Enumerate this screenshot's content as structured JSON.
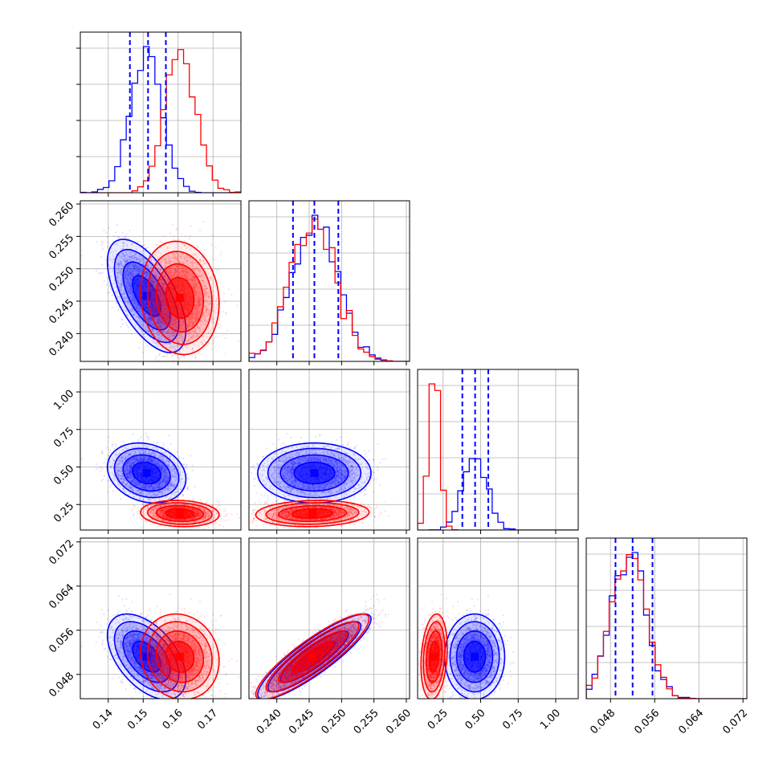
{
  "chart_data": {
    "type": "scatter",
    "subtype": "corner-plot",
    "grid": true,
    "legend": "none",
    "colors": {
      "series_a": "#0000ff",
      "series_b": "#ff0000"
    },
    "parameters": [
      {
        "range": [
          0.132,
          0.178
        ],
        "ticks": [
          "0.14",
          "0.15",
          "0.16",
          "0.17"
        ],
        "tick_values": [
          0.14,
          0.15,
          0.16,
          0.17
        ]
      },
      {
        "range": [
          0.2357,
          0.2605
        ],
        "ticks": [
          "0.240",
          "0.245",
          "0.250",
          "0.255",
          "0.260"
        ],
        "tick_values": [
          0.24,
          0.245,
          0.25,
          0.255,
          0.26
        ]
      },
      {
        "range": [
          0.08,
          1.15
        ],
        "ticks": [
          "0.25",
          "0.50",
          "0.75",
          "1.00"
        ],
        "tick_values": [
          0.25,
          0.5,
          0.75,
          1.0
        ]
      },
      {
        "range": [
          0.0436,
          0.0727
        ],
        "ticks": [
          "0.048",
          "0.056",
          "0.064",
          "0.072"
        ],
        "tick_values": [
          0.048,
          0.056,
          0.064,
          0.072
        ]
      }
    ],
    "series": [
      {
        "key": "series_a",
        "mean": [
          0.151,
          0.2458,
          0.46,
          0.0512
        ],
        "std": [
          0.0045,
          0.0035,
          0.08,
          0.0031
        ],
        "quantiles": [
          [
            0.1462,
            0.1514,
            0.1565
          ],
          [
            0.2425,
            0.2458,
            0.2495
          ],
          [
            0.378,
            0.463,
            0.551
          ],
          [
            0.0489,
            0.052,
            0.0556
          ]
        ]
      },
      {
        "key": "series_b",
        "mean": [
          0.1605,
          0.2455,
          0.19,
          0.0512
        ],
        "std": [
          0.0045,
          0.0035,
          0.035,
          0.0031
        ]
      }
    ],
    "correlations": [
      {
        "pair": [
          1,
          0
        ],
        "series_a": -0.6,
        "series_b": -0.1
      },
      {
        "pair": [
          2,
          0
        ],
        "series_a": -0.2,
        "series_b": -0.1
      },
      {
        "pair": [
          2,
          1
        ],
        "series_a": 0.0,
        "series_b": 0.1
      },
      {
        "pair": [
          3,
          0
        ],
        "series_a": -0.5,
        "series_b": -0.1
      },
      {
        "pair": [
          3,
          1
        ],
        "series_a": 0.88,
        "series_b": 0.88
      },
      {
        "pair": [
          3,
          2
        ],
        "series_a": 0.0,
        "series_b": 0.2
      }
    ]
  }
}
